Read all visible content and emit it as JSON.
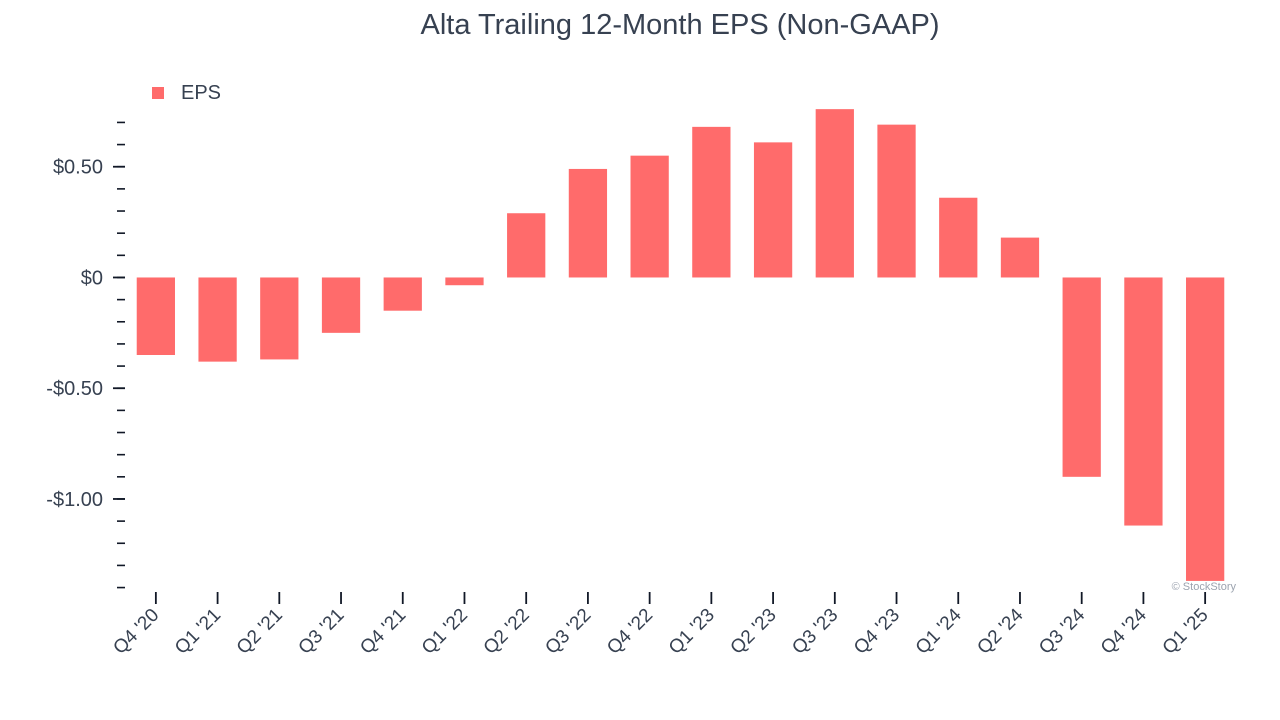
{
  "chart_data": {
    "type": "bar",
    "title": "Alta Trailing 12-Month EPS (Non-GAAP)",
    "xlabel": "",
    "ylabel": "",
    "legend": {
      "entries": [
        "EPS"
      ],
      "placement": "top-left"
    },
    "grid": false,
    "categories": [
      "Q4 '20",
      "Q1 '21",
      "Q2 '21",
      "Q3 '21",
      "Q4 '21",
      "Q1 '22",
      "Q2 '22",
      "Q3 '22",
      "Q4 '22",
      "Q1 '23",
      "Q2 '23",
      "Q3 '23",
      "Q4 '23",
      "Q1 '24",
      "Q2 '24",
      "Q3 '24",
      "Q4 '24",
      "Q1 '25"
    ],
    "series": [
      {
        "name": "EPS",
        "color": "#ff6b6b",
        "values": [
          -0.35,
          -0.38,
          -0.37,
          -0.25,
          -0.15,
          -0.035,
          0.29,
          0.49,
          0.55,
          0.68,
          0.61,
          0.76,
          0.69,
          0.36,
          0.18,
          -0.9,
          -1.12,
          -1.37
        ]
      }
    ],
    "ylim": [
      -1.42,
      0.72
    ],
    "yticks": [
      {
        "value": 0.5,
        "label": "$0.50"
      },
      {
        "value": 0,
        "label": "$0"
      },
      {
        "value": -0.5,
        "label": "-$0.50"
      },
      {
        "value": -1.0,
        "label": "-$1.00"
      }
    ],
    "minor_tick_step": 0.1,
    "watermark": "© StockStory"
  }
}
